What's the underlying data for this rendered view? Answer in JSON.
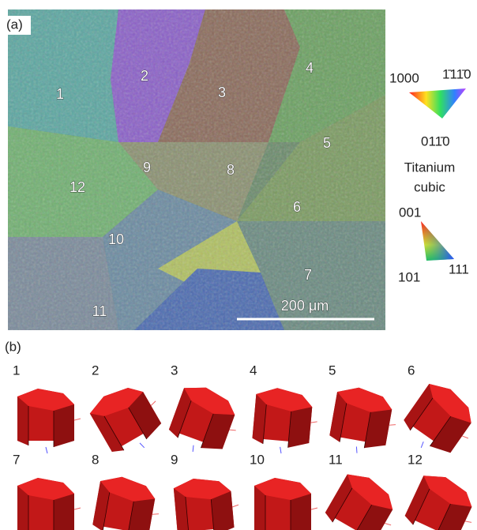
{
  "panel_a": {
    "label": "(a)",
    "grains": [
      "1",
      "2",
      "3",
      "4",
      "5",
      "6",
      "7",
      "8",
      "9",
      "10",
      "11",
      "12"
    ],
    "scale_bar": "200 μm"
  },
  "legend": {
    "hex_corner_left": "1000",
    "hex_corner_top": "1̄11̄0",
    "hex_corner_bottom": "011̄0",
    "phase_name": "Titanium",
    "phase_type": "cubic",
    "cubic_corner_top": "001",
    "cubic_corner_left": "101",
    "cubic_corner_right": "111"
  },
  "panel_b": {
    "label": "(b)",
    "crystals": [
      "1",
      "2",
      "3",
      "4",
      "5",
      "6",
      "7",
      "8",
      "9",
      "10",
      "11",
      "12"
    ]
  }
}
